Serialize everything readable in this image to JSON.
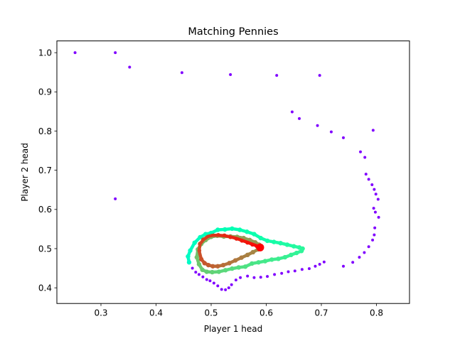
{
  "chart_data": {
    "type": "scatter",
    "title": "Matching Pennies",
    "xlabel": "Player 1 head",
    "ylabel": "Player 2 head",
    "xlim": [
      0.22,
      0.86
    ],
    "ylim": [
      0.36,
      1.03
    ],
    "xticks": [
      0.3,
      0.4,
      0.5,
      0.6,
      0.7,
      0.8
    ],
    "xtick_labels": [
      "0.3",
      "0.4",
      "0.5",
      "0.6",
      "0.7",
      "0.8"
    ],
    "yticks": [
      0.4,
      0.5,
      0.6,
      0.7,
      0.8,
      0.9,
      1.0
    ],
    "ytick_labels": [
      "0.4",
      "0.5",
      "0.6",
      "0.7",
      "0.8",
      "0.9",
      "1.0"
    ],
    "grid": false,
    "colormap": "rainbow",
    "color_start": "#8000ff",
    "color_end": "#ff0000",
    "final_point": {
      "x": 0.589,
      "y": 0.503,
      "color": "#ff0000"
    },
    "series": [
      {
        "x": [
          0.253,
          0.326,
          0.352,
          0.447,
          0.535,
          0.619,
          0.697,
          0.326,
          0.647,
          0.66,
          0.693,
          0.718,
          0.74,
          0.794,
          0.771,
          0.779,
          0.781,
          0.786,
          0.792,
          0.796,
          0.799,
          0.803,
          0.795,
          0.798,
          0.804,
          0.797,
          0.796,
          0.793,
          0.786,
          0.778,
          0.769,
          0.757,
          0.74,
          0.705,
          0.697,
          0.689,
          0.678,
          0.665,
          0.652,
          0.64,
          0.628,
          0.615,
          0.602,
          0.59,
          0.578,
          0.566,
          0.553,
          0.545,
          0.537,
          0.532,
          0.526,
          0.519,
          0.512,
          0.505,
          0.498,
          0.492,
          0.485,
          0.478,
          0.472,
          0.466,
          0.46,
          0.458,
          0.462,
          0.47,
          0.48,
          0.49,
          0.5,
          0.512,
          0.525,
          0.538,
          0.552,
          0.565,
          0.578,
          0.59,
          0.602,
          0.614,
          0.626,
          0.638,
          0.65,
          0.66,
          0.666,
          0.664,
          0.655,
          0.645,
          0.634,
          0.622,
          0.61,
          0.598,
          0.586,
          0.574,
          0.562,
          0.55,
          0.538,
          0.526,
          0.514,
          0.502,
          0.492,
          0.484,
          0.478,
          0.474,
          0.476,
          0.482,
          0.49,
          0.5,
          0.511,
          0.523,
          0.535,
          0.547,
          0.559,
          0.57,
          0.58,
          0.587,
          0.585,
          0.576,
          0.566,
          0.555,
          0.544,
          0.533,
          0.522,
          0.512,
          0.503,
          0.495,
          0.488,
          0.482,
          0.478,
          0.48,
          0.486,
          0.494,
          0.503,
          0.513,
          0.524,
          0.535,
          0.546,
          0.556,
          0.566,
          0.575,
          0.583,
          0.589
        ],
        "y": [
          1.0,
          1.0,
          0.963,
          0.949,
          0.944,
          0.942,
          0.942,
          0.627,
          0.849,
          0.832,
          0.814,
          0.798,
          0.783,
          0.802,
          0.747,
          0.733,
          0.69,
          0.677,
          0.663,
          0.651,
          0.639,
          0.626,
          0.603,
          0.593,
          0.58,
          0.553,
          0.535,
          0.522,
          0.505,
          0.49,
          0.478,
          0.465,
          0.455,
          0.466,
          0.46,
          0.455,
          0.449,
          0.447,
          0.443,
          0.441,
          0.437,
          0.434,
          0.429,
          0.427,
          0.426,
          0.43,
          0.426,
          0.42,
          0.408,
          0.4,
          0.395,
          0.396,
          0.405,
          0.412,
          0.418,
          0.421,
          0.428,
          0.434,
          0.44,
          0.45,
          0.465,
          0.48,
          0.495,
          0.515,
          0.529,
          0.537,
          0.54,
          0.548,
          0.549,
          0.551,
          0.548,
          0.543,
          0.537,
          0.527,
          0.52,
          0.517,
          0.514,
          0.51,
          0.506,
          0.503,
          0.5,
          0.494,
          0.489,
          0.484,
          0.478,
          0.474,
          0.472,
          0.468,
          0.465,
          0.462,
          0.454,
          0.452,
          0.449,
          0.445,
          0.441,
          0.44,
          0.441,
          0.446,
          0.46,
          0.478,
          0.498,
          0.512,
          0.522,
          0.53,
          0.533,
          0.531,
          0.531,
          0.53,
          0.527,
          0.522,
          0.516,
          0.51,
          0.498,
          0.491,
          0.484,
          0.477,
          0.47,
          0.463,
          0.458,
          0.455,
          0.455,
          0.458,
          0.463,
          0.473,
          0.495,
          0.512,
          0.523,
          0.531,
          0.534,
          0.534,
          0.533,
          0.53,
          0.526,
          0.521,
          0.516,
          0.511,
          0.507,
          0.503
        ]
      }
    ]
  }
}
